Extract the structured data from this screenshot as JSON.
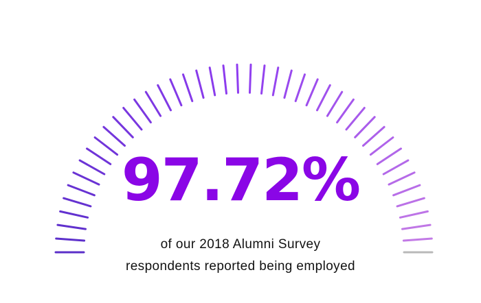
{
  "stat": {
    "value_text": "97.72%",
    "value": 97.72,
    "color": "#8a06e6"
  },
  "caption": {
    "line1": "of our 2018 Alumni Survey",
    "line2": "respondents reported being employed"
  },
  "gauge": {
    "tick_count": 44,
    "filled_color_start": "#5b2fc9",
    "filled_color_mid": "#8f3df0",
    "filled_color_end": "#c27ae6",
    "unfilled_color": "#b9b9b9"
  }
}
